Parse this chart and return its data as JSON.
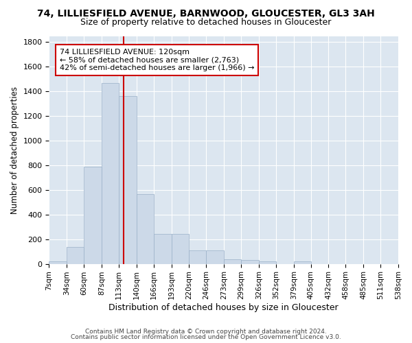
{
  "title1": "74, LILLIESFIELD AVENUE, BARNWOOD, GLOUCESTER, GL3 3AH",
  "title2": "Size of property relative to detached houses in Gloucester",
  "xlabel": "Distribution of detached houses by size in Gloucester",
  "ylabel": "Number of detached properties",
  "bin_edges": [
    7,
    34,
    60,
    87,
    113,
    140,
    166,
    193,
    220,
    246,
    273,
    299,
    326,
    352,
    379,
    405,
    432,
    458,
    485,
    511,
    538
  ],
  "bar_heights": [
    20,
    135,
    790,
    1470,
    1360,
    565,
    245,
    245,
    110,
    110,
    35,
    30,
    20,
    0,
    20,
    0,
    0,
    0,
    0,
    0
  ],
  "bar_facecolor": "#ccd9e8",
  "bar_edgecolor": "#9ab0c8",
  "grid_color": "#ffffff",
  "bg_color": "#dce6f0",
  "property_size": 120,
  "red_line_color": "#cc0000",
  "annotation_line1": "74 LILLIESFIELD AVENUE: 120sqm",
  "annotation_line2": "← 58% of detached houses are smaller (2,763)",
  "annotation_line3": "42% of semi-detached houses are larger (1,966) →",
  "annotation_box_color": "#ffffff",
  "annotation_box_edgecolor": "#cc0000",
  "footer1": "Contains HM Land Registry data © Crown copyright and database right 2024.",
  "footer2": "Contains public sector information licensed under the Open Government Licence v3.0.",
  "ylim": [
    0,
    1850
  ],
  "yticks": [
    0,
    200,
    400,
    600,
    800,
    1000,
    1200,
    1400,
    1600,
    1800
  ]
}
